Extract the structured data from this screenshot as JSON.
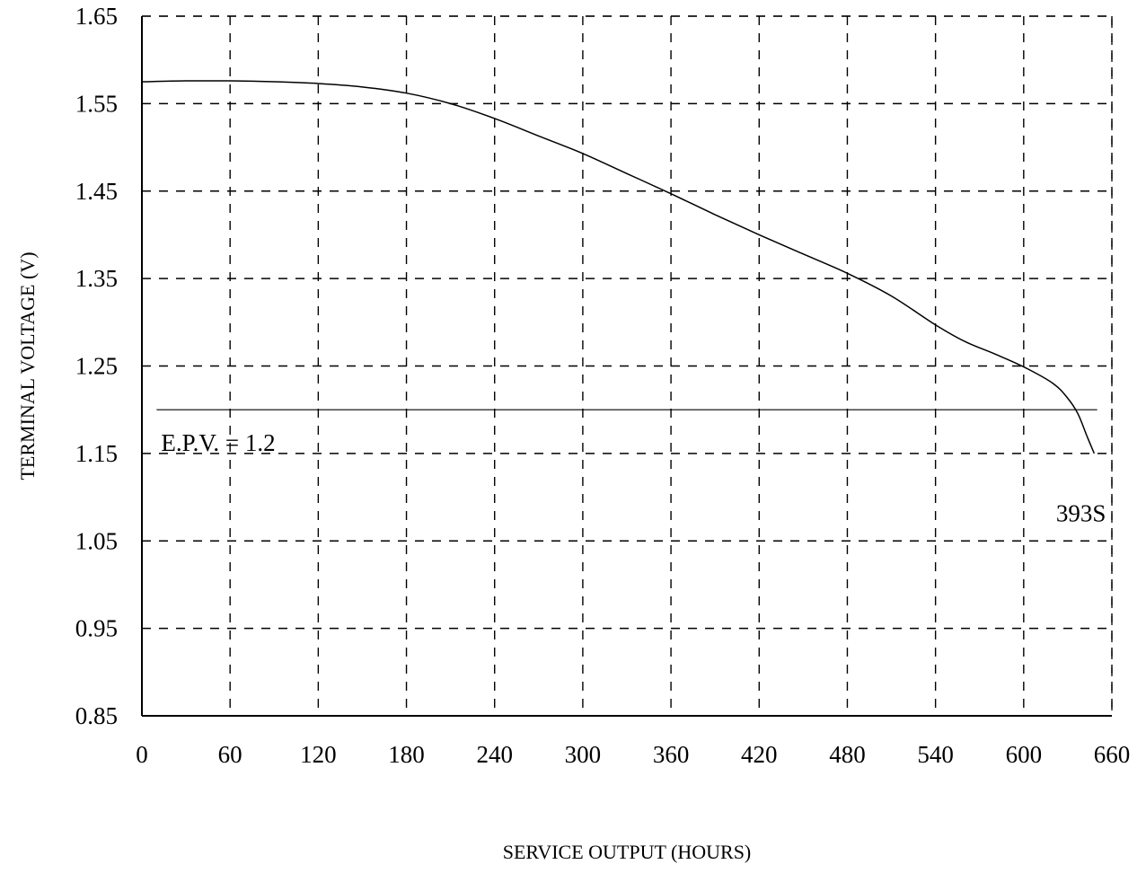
{
  "chart_data": {
    "type": "line",
    "title": "",
    "xlabel": "SERVICE OUTPUT (HOURS)",
    "ylabel": "TERMINAL VOLTAGE (V)",
    "xlim": [
      0,
      660
    ],
    "ylim": [
      0.85,
      1.65
    ],
    "x_ticks": [
      0,
      60,
      120,
      180,
      240,
      300,
      360,
      420,
      480,
      540,
      600,
      660
    ],
    "x_tick_labels": [
      "0",
      "60",
      "120",
      "180",
      "240",
      "300",
      "360",
      "420",
      "480",
      "540",
      "600",
      "660"
    ],
    "y_ticks": [
      0.85,
      0.95,
      1.05,
      1.15,
      1.25,
      1.35,
      1.45,
      1.55,
      1.65
    ],
    "y_tick_labels": [
      "0.85",
      "0.95",
      "1.05",
      "1.15",
      "1.25",
      "1.35",
      "1.45",
      "1.55",
      "1.65"
    ],
    "grid": true,
    "grid_style": "dashed",
    "series": [
      {
        "name": "393S",
        "x": [
          0,
          30,
          60,
          90,
          120,
          150,
          180,
          210,
          240,
          270,
          300,
          330,
          360,
          390,
          420,
          450,
          480,
          510,
          540,
          560,
          580,
          600,
          620,
          630,
          637,
          643,
          648
        ],
        "y": [
          1.575,
          1.576,
          1.576,
          1.575,
          1.573,
          1.569,
          1.562,
          1.55,
          1.533,
          1.513,
          1.493,
          1.47,
          1.447,
          1.423,
          1.4,
          1.378,
          1.356,
          1.33,
          1.297,
          1.278,
          1.264,
          1.249,
          1.23,
          1.213,
          1.195,
          1.17,
          1.15
        ]
      }
    ],
    "reference_line": {
      "y": 1.2,
      "x_start": 10,
      "x_end": 650,
      "label": "E.P.V. = 1.2"
    },
    "annotations": [
      {
        "text": "393S",
        "x": 630,
        "y": 1.1
      }
    ]
  }
}
